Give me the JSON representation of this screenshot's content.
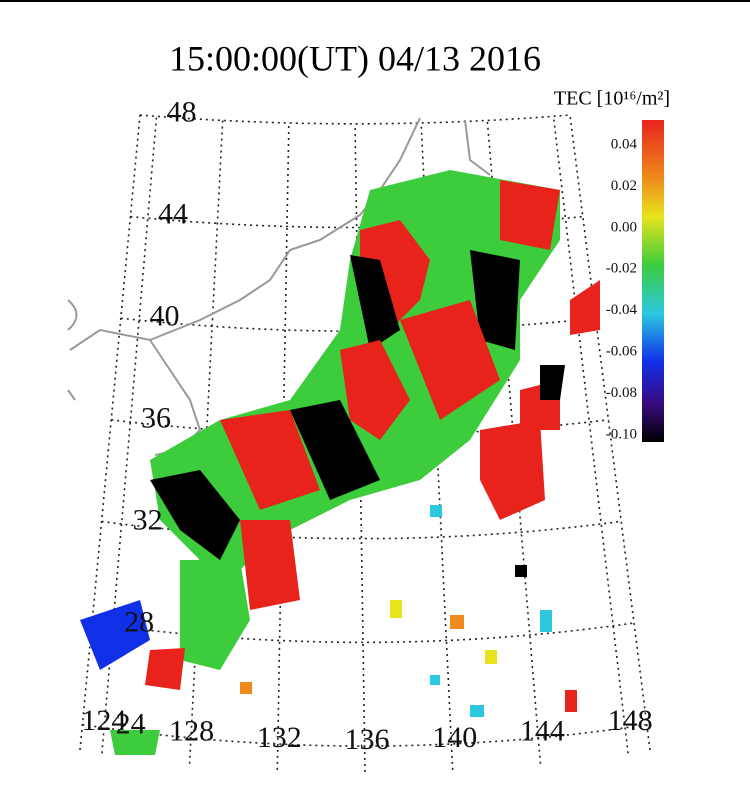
{
  "title": "15:00:00(UT)  04/13 2016",
  "colorbar": {
    "label": "TEC [10¹⁶/m²]",
    "ticks": [
      "0.04",
      "0.02",
      "0.00",
      "-0.02",
      "-0.04",
      "-0.06",
      "-0.08",
      "-0.10"
    ]
  },
  "lat_labels": [
    48,
    44,
    40,
    36,
    32,
    28,
    24
  ],
  "lon_labels": [
    124,
    128,
    132,
    136,
    140,
    144,
    148
  ]
}
